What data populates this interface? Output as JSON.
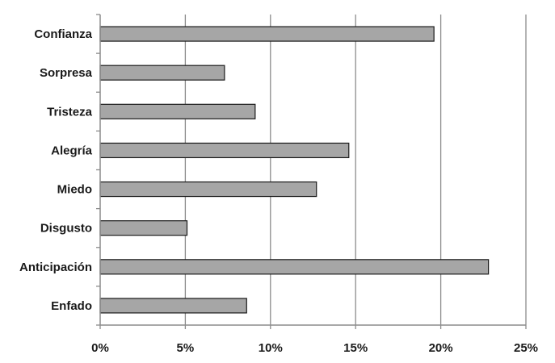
{
  "chart_data": {
    "type": "bar",
    "orientation": "horizontal",
    "categories": [
      "Confianza",
      "Sorpresa",
      "Tristeza",
      "Alegría",
      "Miedo",
      "Disgusto",
      "Anticipación",
      "Enfado"
    ],
    "values": [
      19.6,
      7.3,
      9.1,
      14.6,
      12.7,
      5.1,
      22.8,
      8.6
    ],
    "value_unit": "%",
    "xlim": [
      0,
      25
    ],
    "x_ticks": [
      0,
      5,
      10,
      15,
      20,
      25
    ],
    "x_tick_labels": [
      "0%",
      "5%",
      "10%",
      "15%",
      "20%",
      "25%"
    ],
    "title": "",
    "xlabel": "",
    "ylabel": "",
    "grid": "vertical",
    "legend": "none"
  },
  "colors": {
    "bar_fill": "#a6a6a6",
    "bar_stroke": "#1a1a1a",
    "gridline": "#8c8c8c",
    "axis": "#8c8c8c",
    "text": "#1a1a1a"
  }
}
